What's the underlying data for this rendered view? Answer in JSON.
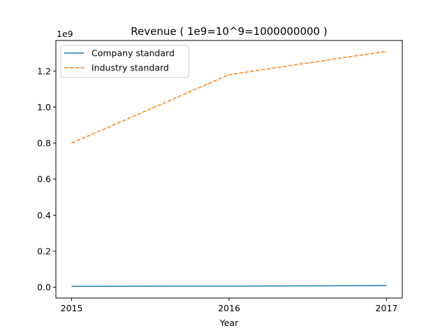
{
  "chart_data": {
    "type": "line",
    "title": "Revenue ( 1e9=10^9=1000000000 )",
    "xlabel": "Year",
    "ylabel": "",
    "offset_text": "1e9",
    "x": [
      2015,
      2016,
      2017
    ],
    "x_tick_labels": [
      "2015",
      "2016",
      "2017"
    ],
    "xlim": [
      2014.9,
      2017.1
    ],
    "ylim": [
      -0.06,
      1.37
    ],
    "y_ticks": [
      0.0,
      0.2,
      0.4,
      0.6,
      0.8,
      1.0,
      1.2
    ],
    "y_tick_labels": [
      "0.0",
      "0.2",
      "0.4",
      "0.6",
      "0.8",
      "1.0",
      "1.2"
    ],
    "grid": false,
    "legend_position": "upper-left",
    "series": [
      {
        "name": "Company standard",
        "values": [
          0.005,
          0.006,
          0.009
        ],
        "color": "#1f77b4",
        "style": "solid"
      },
      {
        "name": "Industry standard",
        "values": [
          0.8,
          1.18,
          1.31
        ],
        "color": "#ff7f0e",
        "style": "dashed"
      }
    ]
  }
}
